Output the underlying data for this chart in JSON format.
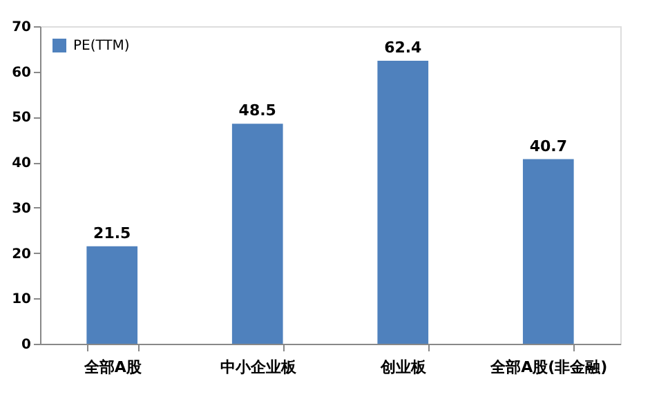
{
  "chart_data": {
    "type": "bar",
    "categories": [
      "全部A股",
      "中小企业板",
      "创业板",
      "全部A股(非金融)"
    ],
    "series": [
      {
        "name": "PE(TTM)",
        "color": "#4f81bd",
        "values": [
          21.5,
          48.5,
          62.4,
          40.7
        ]
      }
    ],
    "ylim": [
      0,
      70
    ],
    "yticks": [
      0,
      10,
      20,
      30,
      40,
      50,
      60,
      70
    ],
    "grid": false,
    "legend": "top left",
    "data_labels": true
  }
}
